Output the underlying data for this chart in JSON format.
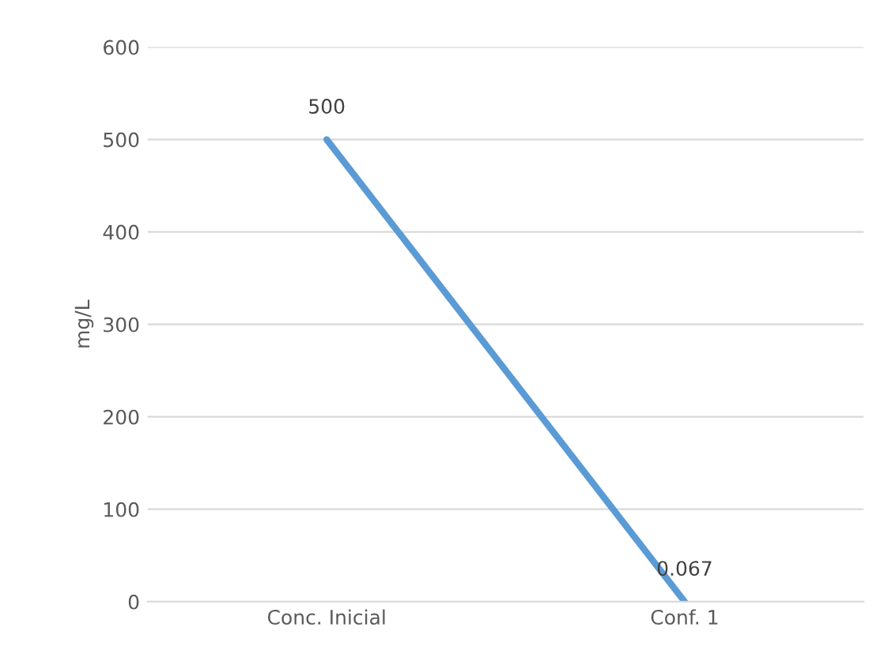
{
  "chart_data": {
    "type": "line",
    "ylabel": "mg/L",
    "categories": [
      "Conc. Inicial",
      "Conf. 1"
    ],
    "series": [
      {
        "color": "#5b9bd5",
        "values": [
          500,
          0.067
        ]
      }
    ],
    "ylim": [
      0,
      600
    ],
    "yticks": [
      0,
      100,
      200,
      300,
      400,
      500,
      600
    ],
    "grid": "y",
    "data_labels": true,
    "marker": "none",
    "line_style": "solid",
    "legend": false
  }
}
